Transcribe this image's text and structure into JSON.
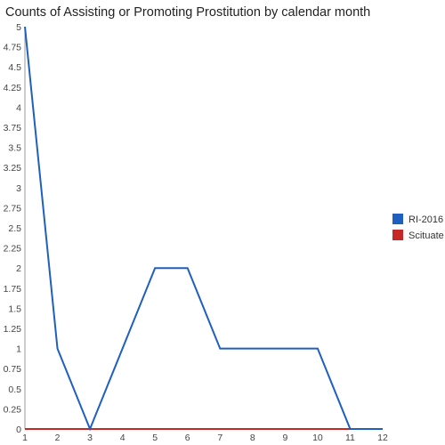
{
  "chart_data": {
    "type": "line",
    "title": "Counts of Assisting or Promoting Prostitution by calendar month",
    "xlabel": "",
    "ylabel": "",
    "x": [
      1,
      2,
      3,
      4,
      5,
      6,
      7,
      8,
      9,
      10,
      11,
      12
    ],
    "x_ticks": [
      "1",
      "2",
      "3",
      "4",
      "5",
      "6",
      "7",
      "8",
      "9",
      "10",
      "11",
      "12"
    ],
    "y_ticks": [
      "0",
      "0.25",
      "0.5",
      "0.75",
      "1",
      "1.25",
      "1.5",
      "1.75",
      "2",
      "2.25",
      "2.5",
      "2.75",
      "3",
      "3.25",
      "3.5",
      "3.75",
      "4",
      "4.25",
      "4.5",
      "4.75",
      "5"
    ],
    "ylim": [
      0,
      5
    ],
    "xlim": [
      1,
      12
    ],
    "grid": false,
    "legend_position": "right",
    "series": [
      {
        "name": "RI-2016",
        "color": "#1f5fbf",
        "values": [
          5,
          1,
          0,
          1,
          2,
          2,
          1,
          1,
          1,
          1,
          0,
          0
        ]
      },
      {
        "name": "Scituate",
        "color": "#c62828",
        "values": [
          0,
          0,
          0,
          0,
          0,
          0,
          0,
          0,
          0,
          0,
          0,
          0
        ]
      }
    ]
  }
}
